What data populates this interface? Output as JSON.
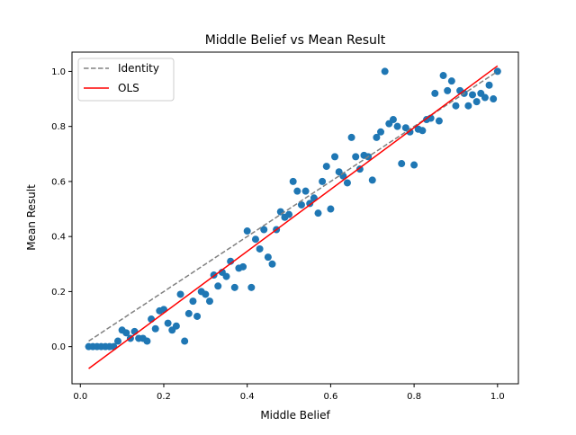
{
  "chart_data": {
    "type": "scatter",
    "title": "Middle Belief vs Mean Result",
    "xlabel": "Middle Belief",
    "ylabel": "Mean Result",
    "xlim": [
      -0.02,
      1.05
    ],
    "ylim": [
      -0.135,
      1.07
    ],
    "x_ticks": [
      "0.0",
      "0.2",
      "0.4",
      "0.6",
      "0.8",
      "1.0"
    ],
    "y_ticks": [
      "0.0",
      "0.2",
      "0.4",
      "0.6",
      "0.8",
      "1.0"
    ],
    "x_tick_values": [
      0.0,
      0.2,
      0.4,
      0.6,
      0.8,
      1.0
    ],
    "y_tick_values": [
      0.0,
      0.2,
      0.4,
      0.6,
      0.8,
      1.0
    ],
    "grid": false,
    "legend_position": "top-left",
    "colors": {
      "points": "#1f77b4",
      "identity": "#808080",
      "ols": "#ff0000"
    },
    "series": [
      {
        "kind": "points",
        "points": [
          [
            0.02,
            0.0
          ],
          [
            0.03,
            0.0
          ],
          [
            0.04,
            0.0
          ],
          [
            0.05,
            0.0
          ],
          [
            0.06,
            0.0
          ],
          [
            0.07,
            0.0
          ],
          [
            0.08,
            0.0
          ],
          [
            0.09,
            0.02
          ],
          [
            0.1,
            0.06
          ],
          [
            0.11,
            0.05
          ],
          [
            0.12,
            0.03
          ],
          [
            0.13,
            0.055
          ],
          [
            0.14,
            0.03
          ],
          [
            0.15,
            0.03
          ],
          [
            0.16,
            0.02
          ],
          [
            0.17,
            0.1
          ],
          [
            0.18,
            0.065
          ],
          [
            0.19,
            0.13
          ],
          [
            0.2,
            0.135
          ],
          [
            0.21,
            0.085
          ],
          [
            0.22,
            0.06
          ],
          [
            0.23,
            0.075
          ],
          [
            0.24,
            0.19
          ],
          [
            0.25,
            0.02
          ],
          [
            0.26,
            0.12
          ],
          [
            0.27,
            0.165
          ],
          [
            0.28,
            0.11
          ],
          [
            0.29,
            0.2
          ],
          [
            0.3,
            0.19
          ],
          [
            0.31,
            0.165
          ],
          [
            0.32,
            0.26
          ],
          [
            0.33,
            0.22
          ],
          [
            0.34,
            0.27
          ],
          [
            0.35,
            0.255
          ],
          [
            0.36,
            0.31
          ],
          [
            0.37,
            0.215
          ],
          [
            0.38,
            0.285
          ],
          [
            0.39,
            0.29
          ],
          [
            0.4,
            0.42
          ],
          [
            0.41,
            0.215
          ],
          [
            0.42,
            0.39
          ],
          [
            0.43,
            0.355
          ],
          [
            0.44,
            0.425
          ],
          [
            0.45,
            0.325
          ],
          [
            0.46,
            0.3
          ],
          [
            0.47,
            0.425
          ],
          [
            0.48,
            0.49
          ],
          [
            0.49,
            0.47
          ],
          [
            0.5,
            0.48
          ],
          [
            0.51,
            0.6
          ],
          [
            0.52,
            0.565
          ],
          [
            0.53,
            0.515
          ],
          [
            0.54,
            0.565
          ],
          [
            0.55,
            0.52
          ],
          [
            0.56,
            0.54
          ],
          [
            0.57,
            0.485
          ],
          [
            0.58,
            0.6
          ],
          [
            0.59,
            0.655
          ],
          [
            0.6,
            0.5
          ],
          [
            0.61,
            0.69
          ],
          [
            0.62,
            0.635
          ],
          [
            0.63,
            0.62
          ],
          [
            0.64,
            0.595
          ],
          [
            0.65,
            0.76
          ],
          [
            0.66,
            0.69
          ],
          [
            0.67,
            0.645
          ],
          [
            0.68,
            0.695
          ],
          [
            0.69,
            0.69
          ],
          [
            0.7,
            0.605
          ],
          [
            0.71,
            0.76
          ],
          [
            0.72,
            0.78
          ],
          [
            0.73,
            1.0
          ],
          [
            0.74,
            0.81
          ],
          [
            0.75,
            0.825
          ],
          [
            0.76,
            0.8
          ],
          [
            0.77,
            0.665
          ],
          [
            0.78,
            0.795
          ],
          [
            0.79,
            0.78
          ],
          [
            0.8,
            0.66
          ],
          [
            0.81,
            0.79
          ],
          [
            0.82,
            0.785
          ],
          [
            0.83,
            0.825
          ],
          [
            0.84,
            0.83
          ],
          [
            0.85,
            0.92
          ],
          [
            0.86,
            0.82
          ],
          [
            0.87,
            0.985
          ],
          [
            0.88,
            0.93
          ],
          [
            0.89,
            0.965
          ],
          [
            0.9,
            0.875
          ],
          [
            0.91,
            0.93
          ],
          [
            0.92,
            0.92
          ],
          [
            0.93,
            0.875
          ],
          [
            0.94,
            0.915
          ],
          [
            0.95,
            0.89
          ],
          [
            0.96,
            0.92
          ],
          [
            0.97,
            0.905
          ],
          [
            0.98,
            0.95
          ],
          [
            0.99,
            0.9
          ],
          [
            1.0,
            1.0
          ]
        ]
      },
      {
        "name": "Identity",
        "kind": "line",
        "style": "dashed",
        "x": [
          0.02,
          1.0
        ],
        "y": [
          0.02,
          1.0
        ]
      },
      {
        "name": "OLS",
        "kind": "line",
        "style": "solid",
        "x": [
          0.02,
          1.0
        ],
        "y": [
          -0.08,
          1.02
        ]
      }
    ]
  }
}
